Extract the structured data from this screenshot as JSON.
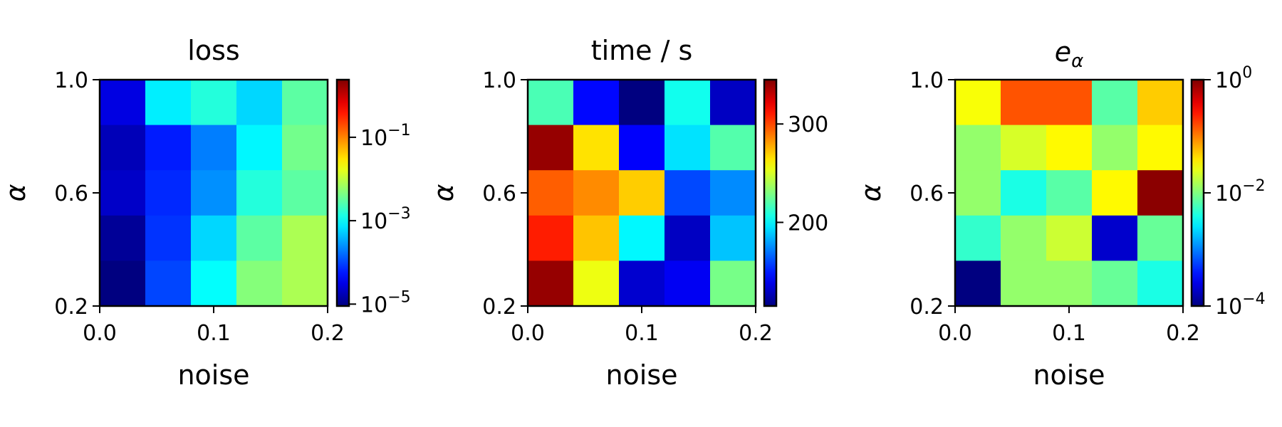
{
  "figure": {
    "background": "#ffffff",
    "colormap": "jet"
  },
  "chart_data": [
    {
      "type": "heatmap",
      "title": "loss",
      "xlabel": "noise",
      "ylabel": "α",
      "x_edges": [
        0.0,
        0.04,
        0.08,
        0.12,
        0.16,
        0.2
      ],
      "y_edges": [
        0.2,
        0.36,
        0.52,
        0.68,
        0.84,
        1.0
      ],
      "xlim": [
        0.0,
        0.2
      ],
      "ylim": [
        0.2,
        1.0
      ],
      "xticks": [
        0.0,
        0.1,
        0.2
      ],
      "xtick_labels": [
        "0.0",
        "0.1",
        "0.2"
      ],
      "yticks": [
        0.2,
        0.6,
        1.0
      ],
      "ytick_labels": [
        "0.2",
        "0.6",
        "1.0"
      ],
      "rows_top_to_bottom": [
        [
          3e-05,
          0.0008,
          0.0015,
          0.0006,
          0.003
        ],
        [
          1.8e-05,
          6e-05,
          0.0002,
          0.0009,
          0.004
        ],
        [
          2.2e-05,
          7e-05,
          0.00025,
          0.0015,
          0.003
        ],
        [
          1.2e-05,
          8e-05,
          0.0006,
          0.003,
          0.008
        ],
        [
          6e-06,
          0.0001,
          0.001,
          0.005,
          0.008
        ]
      ],
      "colorbar": {
        "scale": "log",
        "vmin": 9e-06,
        "vmax": 2.4,
        "ticks": [
          1e-05,
          0.001,
          0.1
        ],
        "tick_labels": [
          {
            "base": "10",
            "exp": "−5"
          },
          {
            "base": "10",
            "exp": "−3"
          },
          {
            "base": "10",
            "exp": "−1"
          }
        ]
      }
    },
    {
      "type": "heatmap",
      "title": "time / s",
      "xlabel": "noise",
      "ylabel": "α",
      "x_edges": [
        0.0,
        0.04,
        0.08,
        0.12,
        0.16,
        0.2
      ],
      "y_edges": [
        0.2,
        0.36,
        0.52,
        0.68,
        0.84,
        1.0
      ],
      "xlim": [
        0.0,
        0.2
      ],
      "ylim": [
        0.2,
        1.0
      ],
      "xticks": [
        0.0,
        0.1,
        0.2
      ],
      "xtick_labels": [
        "0.0",
        "0.1",
        "0.2"
      ],
      "yticks": [
        0.2,
        0.6,
        1.0
      ],
      "ytick_labels": [
        "0.2",
        "0.6",
        "1.0"
      ],
      "rows_top_to_bottom": [
        [
          218,
          145,
          115,
          205,
          130
        ],
        [
          340,
          265,
          143,
          195,
          220
        ],
        [
          295,
          285,
          270,
          160,
          175
        ],
        [
          310,
          272,
          200,
          130,
          188
        ],
        [
          340,
          255,
          133,
          141,
          228
        ]
      ],
      "colorbar": {
        "scale": "linear",
        "vmin": 115,
        "vmax": 345,
        "ticks": [
          200,
          300
        ],
        "tick_labels": [
          {
            "base": "200",
            "exp": ""
          },
          {
            "base": "300",
            "exp": ""
          }
        ]
      }
    },
    {
      "type": "heatmap",
      "title": "e_α",
      "title_parts": {
        "base": "e",
        "sub": "α"
      },
      "xlabel": "noise",
      "ylabel": "α",
      "x_edges": [
        0.0,
        0.04,
        0.08,
        0.12,
        0.16,
        0.2
      ],
      "y_edges": [
        0.2,
        0.36,
        0.52,
        0.68,
        0.84,
        1.0
      ],
      "xlim": [
        0.0,
        0.2
      ],
      "ylim": [
        0.2,
        1.0
      ],
      "xticks": [
        0.0,
        0.1,
        0.2
      ],
      "xtick_labels": [
        "0.0",
        "0.1",
        "0.2"
      ],
      "yticks": [
        0.2,
        0.6,
        1.0
      ],
      "ytick_labels": [
        "0.2",
        "0.6",
        "1.0"
      ],
      "rows_top_to_bottom": [
        [
          0.03,
          0.15,
          0.15,
          0.007,
          0.05
        ],
        [
          0.012,
          0.022,
          0.033,
          0.012,
          0.033
        ],
        [
          0.012,
          0.004,
          0.007,
          0.033,
          0.9
        ],
        [
          0.005,
          0.012,
          0.02,
          0.0002,
          0.008
        ],
        [
          0.0001,
          0.012,
          0.012,
          0.008,
          0.004
        ]
      ],
      "colorbar": {
        "scale": "log",
        "vmin": 0.0001,
        "vmax": 1.0,
        "ticks": [
          0.0001,
          0.01,
          1.0
        ],
        "tick_labels": [
          {
            "base": "10",
            "exp": "−4"
          },
          {
            "base": "10",
            "exp": "−2"
          },
          {
            "base": "10",
            "exp": "0"
          }
        ]
      }
    }
  ]
}
